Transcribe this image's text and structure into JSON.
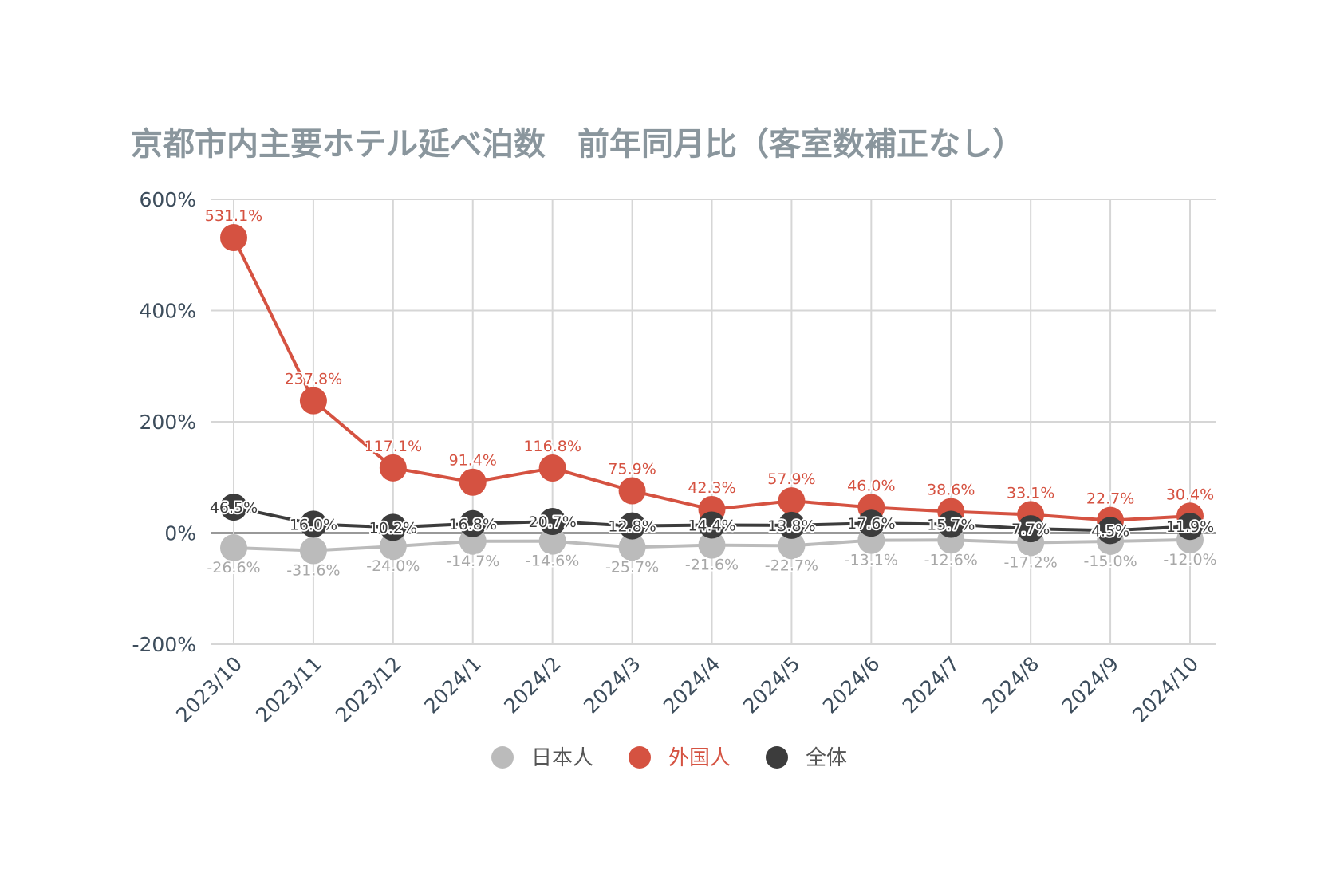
{
  "chart_data": {
    "type": "line",
    "title": "京都市内主要ホテル延べ泊数　前年同月比（客室数補正なし）",
    "xlabel": "",
    "ylabel": "",
    "ylim": [
      -200,
      600
    ],
    "yticks": [
      600,
      400,
      200,
      0,
      -200
    ],
    "ytick_labels": [
      "600%",
      "400%",
      "200%",
      "0%",
      "-200%"
    ],
    "grid": true,
    "legend_position": "bottom",
    "categories": [
      "2023/10",
      "2023/11",
      "2023/12",
      "2024/1",
      "2024/2",
      "2024/3",
      "2024/4",
      "2024/5",
      "2024/6",
      "2024/7",
      "2024/8",
      "2024/9",
      "2024/10"
    ],
    "series": [
      {
        "name": "日本人",
        "color": "#bbbbbb",
        "values": [
          -26.6,
          -31.6,
          -24.0,
          -14.7,
          -14.6,
          -25.7,
          -21.6,
          -22.7,
          -13.1,
          -12.6,
          -17.2,
          -15.0,
          -12.0
        ],
        "labels": [
          "-26.6%",
          "-31.6%",
          "-24.0%",
          "-14.7%",
          "-14.6%",
          "-25.7%",
          "-21.6%",
          "-22.7%",
          "-13.1%",
          "-12.6%",
          "-17.2%",
          "-15.0%",
          "-12.0%"
        ]
      },
      {
        "name": "外国人",
        "color": "#d55241",
        "values": [
          531.1,
          237.8,
          117.1,
          91.4,
          116.8,
          75.9,
          42.3,
          57.9,
          46.0,
          38.6,
          33.1,
          22.7,
          30.4
        ],
        "labels": [
          "531.1%",
          "237.8%",
          "117.1%",
          "91.4%",
          "116.8%",
          "75.9%",
          "42.3%",
          "57.9%",
          "46.0%",
          "38.6%",
          "33.1%",
          "22.7%",
          "30.4%"
        ]
      },
      {
        "name": "全体",
        "color": "#3c3c3c",
        "values": [
          46.5,
          16.0,
          10.2,
          16.8,
          20.7,
          12.8,
          14.4,
          13.8,
          17.6,
          15.7,
          7.7,
          4.5,
          11.9
        ],
        "labels": [
          "46.5%",
          "16.0%",
          "10.2%",
          "16.8%",
          "20.7%",
          "12.8%",
          "14.4%",
          "13.8%",
          "17.6%",
          "15.7%",
          "7.7%",
          "4.5%",
          "11.9%"
        ]
      }
    ]
  }
}
